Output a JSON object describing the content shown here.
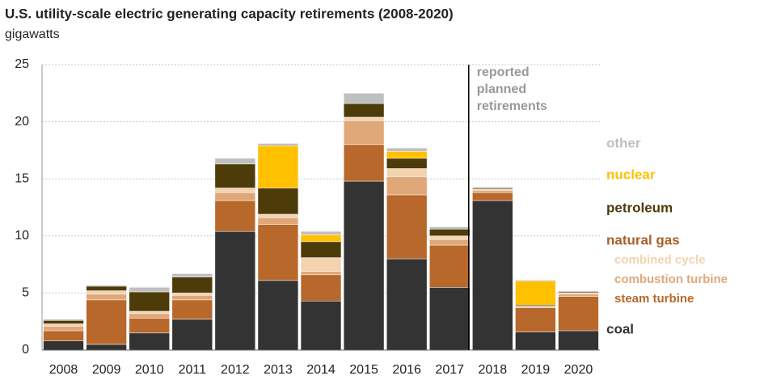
{
  "chart_data": {
    "type": "stacked_bar",
    "title": "U.S. utility-scale electric generating capacity retirements (2008-2020)",
    "subtitle": "gigawatts",
    "categories": [
      "2008",
      "2009",
      "2010",
      "2011",
      "2012",
      "2013",
      "2014",
      "2015",
      "2016",
      "2017",
      "2018",
      "2019",
      "2020"
    ],
    "series": [
      {
        "name": "coal",
        "color": "#333333",
        "values": [
          0.8,
          0.5,
          1.5,
          2.7,
          10.4,
          6.1,
          4.3,
          14.8,
          8.0,
          5.5,
          13.1,
          1.6,
          1.7
        ]
      },
      {
        "name": "steam turbine",
        "color": "#b8682a",
        "values": [
          0.9,
          3.9,
          1.3,
          1.7,
          2.7,
          4.9,
          2.3,
          3.2,
          5.6,
          3.7,
          0.7,
          2.1,
          3.0
        ]
      },
      {
        "name": "combustion turbine",
        "color": "#e0a878",
        "values": [
          0.4,
          0.5,
          0.4,
          0.4,
          0.7,
          0.6,
          0.3,
          2.1,
          1.6,
          0.5,
          0.2,
          0.1,
          0.2
        ]
      },
      {
        "name": "combined cycle",
        "color": "#f3d3b0",
        "values": [
          0.2,
          0.3,
          0.2,
          0.2,
          0.4,
          0.3,
          1.2,
          0.3,
          0.7,
          0.3,
          0.1,
          0.05,
          0.1
        ]
      },
      {
        "name": "petroleum",
        "color": "#4d3b0a",
        "values": [
          0.3,
          0.4,
          1.7,
          1.4,
          2.1,
          2.3,
          1.4,
          1.2,
          0.9,
          0.6,
          0.1,
          0.1,
          0.1
        ]
      },
      {
        "name": "nuclear",
        "color": "#ffc000",
        "values": [
          0,
          0,
          0,
          0,
          0,
          3.7,
          0.6,
          0,
          0.6,
          0,
          0,
          2.1,
          0
        ]
      },
      {
        "name": "other",
        "color": "#bfbfbf",
        "values": [
          0.1,
          0.1,
          0.4,
          0.3,
          0.5,
          0.2,
          0.3,
          0.9,
          0.3,
          0.2,
          0.1,
          0.1,
          0.1
        ]
      }
    ],
    "legend_group": {
      "label": "natural gas",
      "color": "#a8602a"
    },
    "annotation": {
      "lines": [
        "reported",
        "planned",
        "retirements"
      ],
      "category": "2018"
    },
    "ylim": [
      0,
      25
    ],
    "yticks": [
      0,
      5,
      10,
      15,
      20,
      25
    ],
    "grid": true
  }
}
